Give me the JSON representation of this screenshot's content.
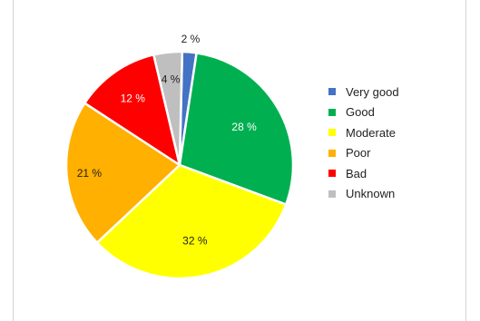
{
  "chart_data": {
    "type": "pie",
    "title": "",
    "legend_position": "right",
    "slices": [
      {
        "label": "Very good",
        "value": 2,
        "display": "2 %",
        "color": "#4472c4"
      },
      {
        "label": "Good",
        "value": 28,
        "display": "28 %",
        "color": "#00b050"
      },
      {
        "label": "Moderate",
        "value": 32,
        "display": "32 %",
        "color": "#ffff00"
      },
      {
        "label": "Poor",
        "value": 21,
        "display": "21 %",
        "color": "#ffb000"
      },
      {
        "label": "Bad",
        "value": 12,
        "display": "12 %",
        "color": "#ff0000"
      },
      {
        "label": "Unknown",
        "value": 4,
        "display": "4 %",
        "color": "#bfbfbf"
      }
    ]
  }
}
